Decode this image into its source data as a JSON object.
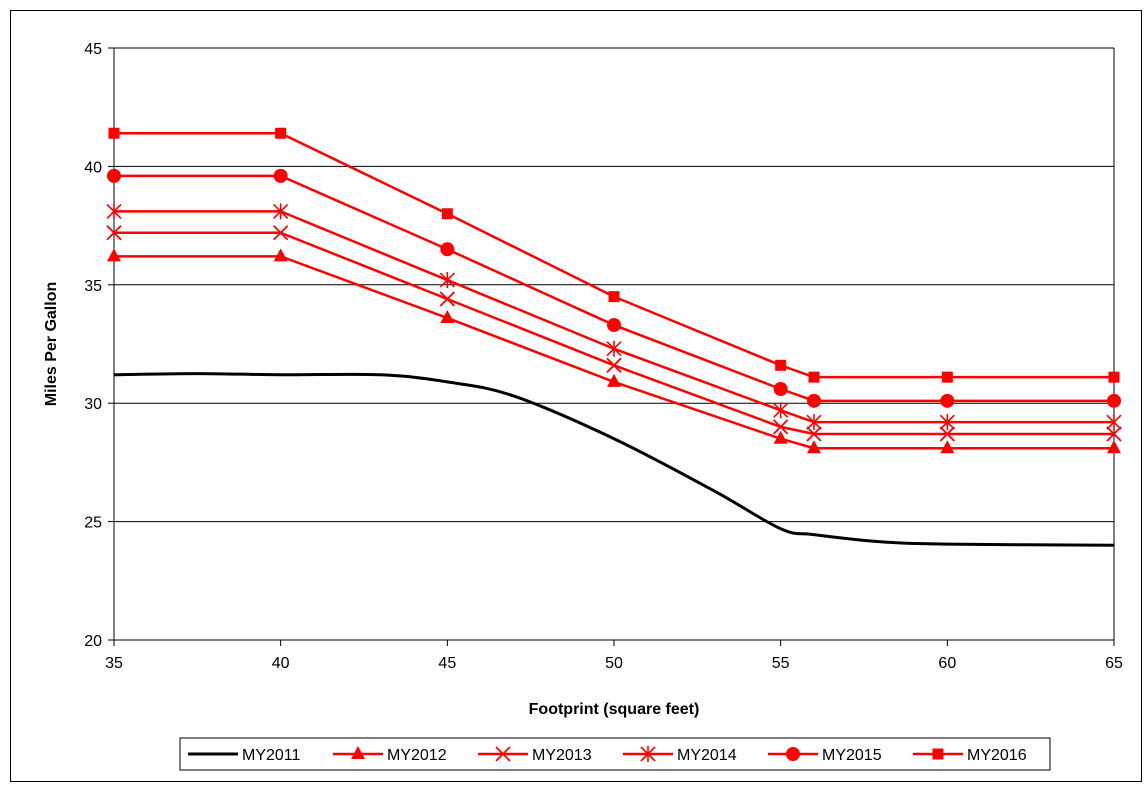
{
  "chart_data": {
    "type": "line",
    "title": "",
    "xlabel": "Footprint (square feet)",
    "ylabel": "Miles Per Gallon",
    "xlim": [
      35,
      65
    ],
    "ylim": [
      20,
      45
    ],
    "xticks": [
      35,
      40,
      45,
      50,
      55,
      60,
      65
    ],
    "yticks": [
      20,
      25,
      30,
      35,
      40,
      45
    ],
    "grid": "horizontal",
    "legend_position": "bottom",
    "series": [
      {
        "name": "MY2011",
        "color": "#000000",
        "marker": "none",
        "smooth": true,
        "points": [
          [
            35,
            31.2
          ],
          [
            37.5,
            31.25
          ],
          [
            40,
            31.2
          ],
          [
            43,
            31.2
          ],
          [
            45,
            30.9
          ],
          [
            47,
            30.3
          ],
          [
            50,
            28.5
          ],
          [
            53,
            26.3
          ],
          [
            55,
            24.7
          ],
          [
            56,
            24.45
          ],
          [
            58,
            24.15
          ],
          [
            60,
            24.05
          ],
          [
            65,
            24.0
          ]
        ]
      },
      {
        "name": "MY2012",
        "color": "#ff0000",
        "marker": "triangle",
        "points": [
          [
            35,
            36.2
          ],
          [
            40,
            36.2
          ],
          [
            45,
            33.6
          ],
          [
            50,
            30.9
          ],
          [
            55,
            28.5
          ],
          [
            56,
            28.1
          ],
          [
            60,
            28.1
          ],
          [
            65,
            28.1
          ]
        ]
      },
      {
        "name": "MY2013",
        "color": "#ff0000",
        "marker": "x",
        "points": [
          [
            35,
            37.2
          ],
          [
            40,
            37.2
          ],
          [
            45,
            34.4
          ],
          [
            50,
            31.6
          ],
          [
            55,
            29.0
          ],
          [
            56,
            28.7
          ],
          [
            60,
            28.7
          ],
          [
            65,
            28.7
          ]
        ]
      },
      {
        "name": "MY2014",
        "color": "#ff0000",
        "marker": "asterisk",
        "points": [
          [
            35,
            38.1
          ],
          [
            40,
            38.1
          ],
          [
            45,
            35.2
          ],
          [
            50,
            32.3
          ],
          [
            55,
            29.7
          ],
          [
            56,
            29.2
          ],
          [
            60,
            29.2
          ],
          [
            65,
            29.2
          ]
        ]
      },
      {
        "name": "MY2015",
        "color": "#ff0000",
        "marker": "circle",
        "points": [
          [
            35,
            39.6
          ],
          [
            40,
            39.6
          ],
          [
            45,
            36.5
          ],
          [
            50,
            33.3
          ],
          [
            55,
            30.6
          ],
          [
            56,
            30.1
          ],
          [
            60,
            30.1
          ],
          [
            65,
            30.1
          ]
        ]
      },
      {
        "name": "MY2016",
        "color": "#ff0000",
        "marker": "square",
        "points": [
          [
            35,
            41.4
          ],
          [
            40,
            41.4
          ],
          [
            45,
            38.0
          ],
          [
            50,
            34.5
          ],
          [
            55,
            31.6
          ],
          [
            56,
            31.1
          ],
          [
            60,
            31.1
          ],
          [
            65,
            31.1
          ]
        ]
      }
    ]
  }
}
